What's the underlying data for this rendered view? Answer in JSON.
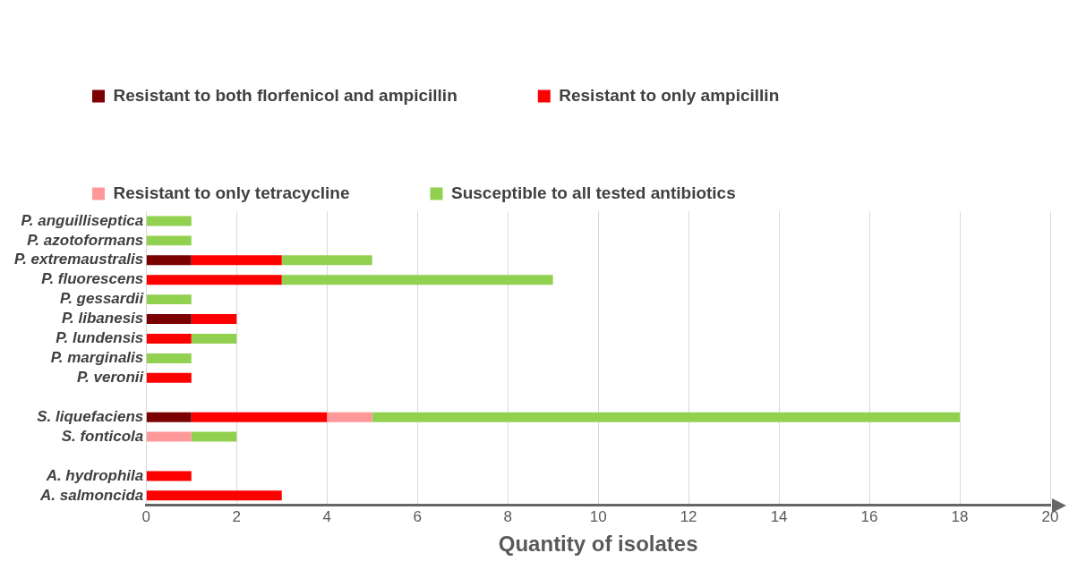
{
  "chart_data": {
    "type": "bar",
    "orientation": "horizontal",
    "stacked": true,
    "xlabel": "Quantity of isolates",
    "categories": [
      "P. anguilliseptica",
      "P. azotoformans",
      "P. extremaustralis",
      "P. fluorescens",
      "P. gessardii",
      "P. libanesis",
      "P. lundensis",
      "P. marginalis",
      "P. veronii",
      null,
      "S. liquefaciens",
      "S. fonticola",
      null,
      "A. hydrophila",
      "A. salmoncida"
    ],
    "series": [
      {
        "name": "Resistant to both florfenicol and ampicillin",
        "color": "#7b0000",
        "values": [
          0,
          0,
          1,
          0,
          0,
          1,
          0,
          0,
          0,
          null,
          1,
          0,
          null,
          0,
          0
        ]
      },
      {
        "name": "Resistant to only ampicillin",
        "color": "#ff0000",
        "values": [
          0,
          0,
          2,
          3,
          0,
          1,
          1,
          0,
          1,
          null,
          3,
          0,
          null,
          1,
          3
        ]
      },
      {
        "name": "Resistant to only tetracycline",
        "color": "#ff9999",
        "values": [
          0,
          0,
          0,
          0,
          0,
          0,
          0,
          0,
          0,
          null,
          1,
          1,
          null,
          0,
          0
        ]
      },
      {
        "name": "Susceptible to all tested antibiotics",
        "color": "#92d050",
        "values": [
          1,
          1,
          2,
          6,
          1,
          0,
          1,
          1,
          0,
          null,
          13,
          1,
          null,
          0,
          0
        ]
      }
    ],
    "xlim": [
      0,
      20
    ],
    "xticks": [
      0,
      2,
      4,
      6,
      8,
      10,
      12,
      14,
      16,
      18,
      20
    ],
    "grid": "x",
    "legend": "top"
  }
}
